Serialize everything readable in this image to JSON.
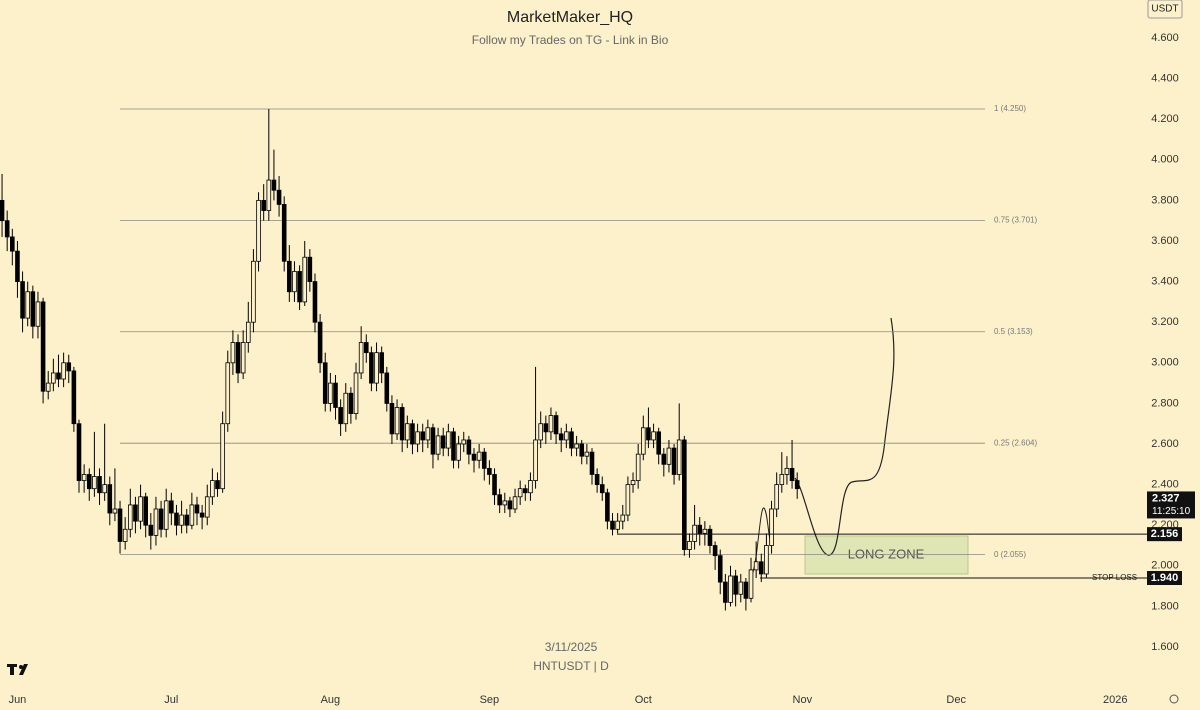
{
  "chart_data": {
    "type": "candlestick",
    "title": "MarketMaker_HQ",
    "subtitle": "Follow my Trades on TG - Link in Bio",
    "currency": "USDT",
    "date": "3/11/2025",
    "symbol": "HNTUSDT | D",
    "zone_label": "LONG ZONE",
    "countdown": "11:25:10",
    "up_color": "#fdf1cc",
    "down_color": "#000000",
    "xlim": [
      -0.4,
      222.8
    ],
    "xticks": [
      {
        "value": 3,
        "label": "Jun"
      },
      {
        "value": 33,
        "label": "Jul"
      },
      {
        "value": 64,
        "label": "Aug"
      },
      {
        "value": 95,
        "label": "Sep"
      },
      {
        "value": 125,
        "label": "Oct"
      },
      {
        "value": 156,
        "label": "Nov"
      },
      {
        "value": 186,
        "label": "Dec"
      },
      {
        "value": 217,
        "label": "2026"
      }
    ],
    "ylim": [
      1.413,
      4.787
    ],
    "yticks": [
      {
        "value": 1.6,
        "label": "1.600"
      },
      {
        "value": 1.8,
        "label": "1.800"
      },
      {
        "value": 2.0,
        "label": "2.000"
      },
      {
        "value": 2.2,
        "label": "2.200"
      },
      {
        "value": 2.4,
        "label": "2.400"
      },
      {
        "value": 2.6,
        "label": "2.600"
      },
      {
        "value": 2.8,
        "label": "2.800"
      },
      {
        "value": 3.0,
        "label": "3.000"
      },
      {
        "value": 3.2,
        "label": "3.200"
      },
      {
        "value": 3.4,
        "label": "3.400"
      },
      {
        "value": 3.6,
        "label": "3.600"
      },
      {
        "value": 3.8,
        "label": "3.800"
      },
      {
        "value": 4.0,
        "label": "4.000"
      },
      {
        "value": 4.2,
        "label": "4.200"
      },
      {
        "value": 4.4,
        "label": "4.400"
      },
      {
        "value": 4.6,
        "label": "4.600"
      }
    ],
    "fib_levels": [
      {
        "value": 4.25,
        "label": "1 (4.250)"
      },
      {
        "value": 3.701,
        "label": "0.75 (3.701)"
      },
      {
        "value": 3.153,
        "label": "0.5 (3.153)"
      },
      {
        "value": 2.604,
        "label": "0.25 (2.604)"
      },
      {
        "value": 2.055,
        "label": "0 (2.055)"
      }
    ],
    "last_price": {
      "value": 2.327,
      "label": "2.327"
    },
    "price_lines": [
      {
        "value": 2.156,
        "label": "2.156"
      },
      {
        "value": 1.94,
        "label": "1.940",
        "name": "STOP LOSS -"
      }
    ],
    "ohlc": [
      [
        3.8,
        3.93,
        3.62,
        3.7
      ],
      [
        3.7,
        3.75,
        3.55,
        3.62
      ],
      [
        3.62,
        3.66,
        3.48,
        3.55
      ],
      [
        3.55,
        3.6,
        3.32,
        3.4
      ],
      [
        3.4,
        3.45,
        3.15,
        3.22
      ],
      [
        3.22,
        3.4,
        3.18,
        3.35
      ],
      [
        3.35,
        3.38,
        3.12,
        3.18
      ],
      [
        3.18,
        3.35,
        3.12,
        3.3
      ],
      [
        3.3,
        3.32,
        2.8,
        2.86
      ],
      [
        2.86,
        2.96,
        2.82,
        2.9
      ],
      [
        2.9,
        3.02,
        2.86,
        2.95
      ],
      [
        2.95,
        3.04,
        2.88,
        2.92
      ],
      [
        2.92,
        3.05,
        2.88,
        3.0
      ],
      [
        3.0,
        3.04,
        2.9,
        2.96
      ],
      [
        2.96,
        2.98,
        2.66,
        2.7
      ],
      [
        2.7,
        2.72,
        2.36,
        2.42
      ],
      [
        2.42,
        2.5,
        2.36,
        2.45
      ],
      [
        2.45,
        2.48,
        2.32,
        2.38
      ],
      [
        2.38,
        2.66,
        2.34,
        2.44
      ],
      [
        2.44,
        2.48,
        2.3,
        2.36
      ],
      [
        2.36,
        2.7,
        2.32,
        2.4
      ],
      [
        2.4,
        2.44,
        2.2,
        2.26
      ],
      [
        2.26,
        2.48,
        2.22,
        2.28
      ],
      [
        2.28,
        2.32,
        2.06,
        2.12
      ],
      [
        2.12,
        2.24,
        2.08,
        2.18
      ],
      [
        2.18,
        2.38,
        2.14,
        2.3
      ],
      [
        2.3,
        2.34,
        2.16,
        2.22
      ],
      [
        2.22,
        2.4,
        2.18,
        2.34
      ],
      [
        2.34,
        2.36,
        2.14,
        2.2
      ],
      [
        2.2,
        2.26,
        2.08,
        2.15
      ],
      [
        2.15,
        2.34,
        2.1,
        2.28
      ],
      [
        2.28,
        2.32,
        2.14,
        2.18
      ],
      [
        2.18,
        2.38,
        2.14,
        2.32
      ],
      [
        2.32,
        2.36,
        2.2,
        2.26
      ],
      [
        2.26,
        2.3,
        2.15,
        2.2
      ],
      [
        2.2,
        2.32,
        2.16,
        2.25
      ],
      [
        2.25,
        2.28,
        2.16,
        2.2
      ],
      [
        2.2,
        2.36,
        2.18,
        2.3
      ],
      [
        2.3,
        2.34,
        2.2,
        2.26
      ],
      [
        2.26,
        2.3,
        2.18,
        2.24
      ],
      [
        2.24,
        2.4,
        2.2,
        2.34
      ],
      [
        2.34,
        2.48,
        2.3,
        2.42
      ],
      [
        2.42,
        2.46,
        2.34,
        2.38
      ],
      [
        2.38,
        2.76,
        2.36,
        2.7
      ],
      [
        2.7,
        3.06,
        2.66,
        3.0
      ],
      [
        3.0,
        3.16,
        2.94,
        3.1
      ],
      [
        3.1,
        3.14,
        2.9,
        2.95
      ],
      [
        2.95,
        3.16,
        2.92,
        3.1
      ],
      [
        3.1,
        3.3,
        3.05,
        3.2
      ],
      [
        3.2,
        3.56,
        3.15,
        3.5
      ],
      [
        3.5,
        3.84,
        3.45,
        3.8
      ],
      [
        3.8,
        3.88,
        3.7,
        3.75
      ],
      [
        3.75,
        4.25,
        3.7,
        3.9
      ],
      [
        3.9,
        4.05,
        3.8,
        3.85
      ],
      [
        3.85,
        3.92,
        3.72,
        3.78
      ],
      [
        3.78,
        3.82,
        3.45,
        3.5
      ],
      [
        3.5,
        3.58,
        3.3,
        3.35
      ],
      [
        3.35,
        3.5,
        3.3,
        3.45
      ],
      [
        3.45,
        3.48,
        3.26,
        3.3
      ],
      [
        3.3,
        3.6,
        3.28,
        3.52
      ],
      [
        3.52,
        3.56,
        3.35,
        3.4
      ],
      [
        3.4,
        3.44,
        3.15,
        3.2
      ],
      [
        3.2,
        3.24,
        2.95,
        3.0
      ],
      [
        3.0,
        3.05,
        2.76,
        2.8
      ],
      [
        2.8,
        2.95,
        2.76,
        2.9
      ],
      [
        2.9,
        2.94,
        2.72,
        2.78
      ],
      [
        2.78,
        2.82,
        2.64,
        2.7
      ],
      [
        2.7,
        2.9,
        2.66,
        2.85
      ],
      [
        2.85,
        2.88,
        2.7,
        2.75
      ],
      [
        2.75,
        3.0,
        2.72,
        2.95
      ],
      [
        2.95,
        3.18,
        2.92,
        3.1
      ],
      [
        3.1,
        3.14,
        3.0,
        3.05
      ],
      [
        3.05,
        3.08,
        2.86,
        2.9
      ],
      [
        2.9,
        3.1,
        2.86,
        3.05
      ],
      [
        3.05,
        3.08,
        2.9,
        2.95
      ],
      [
        2.95,
        2.98,
        2.76,
        2.8
      ],
      [
        2.8,
        2.84,
        2.6,
        2.65
      ],
      [
        2.65,
        2.82,
        2.62,
        2.78
      ],
      [
        2.78,
        2.8,
        2.56,
        2.62
      ],
      [
        2.62,
        2.74,
        2.58,
        2.7
      ],
      [
        2.7,
        2.72,
        2.55,
        2.6
      ],
      [
        2.6,
        2.7,
        2.56,
        2.66
      ],
      [
        2.66,
        2.7,
        2.56,
        2.62
      ],
      [
        2.62,
        2.72,
        2.58,
        2.68
      ],
      [
        2.68,
        2.7,
        2.48,
        2.55
      ],
      [
        2.55,
        2.68,
        2.52,
        2.64
      ],
      [
        2.64,
        2.68,
        2.54,
        2.58
      ],
      [
        2.58,
        2.7,
        2.54,
        2.66
      ],
      [
        2.66,
        2.68,
        2.48,
        2.52
      ],
      [
        2.52,
        2.64,
        2.48,
        2.6
      ],
      [
        2.6,
        2.66,
        2.56,
        2.62
      ],
      [
        2.62,
        2.64,
        2.5,
        2.55
      ],
      [
        2.55,
        2.58,
        2.46,
        2.52
      ],
      [
        2.52,
        2.6,
        2.48,
        2.56
      ],
      [
        2.56,
        2.58,
        2.42,
        2.48
      ],
      [
        2.48,
        2.52,
        2.4,
        2.45
      ],
      [
        2.45,
        2.48,
        2.3,
        2.35
      ],
      [
        2.35,
        2.38,
        2.26,
        2.3
      ],
      [
        2.3,
        2.36,
        2.26,
        2.32
      ],
      [
        2.32,
        2.34,
        2.24,
        2.28
      ],
      [
        2.28,
        2.38,
        2.26,
        2.34
      ],
      [
        2.34,
        2.42,
        2.3,
        2.38
      ],
      [
        2.38,
        2.4,
        2.32,
        2.36
      ],
      [
        2.36,
        2.46,
        2.32,
        2.42
      ],
      [
        2.42,
        2.98,
        2.38,
        2.62
      ],
      [
        2.62,
        2.76,
        2.58,
        2.7
      ],
      [
        2.7,
        2.74,
        2.6,
        2.66
      ],
      [
        2.66,
        2.78,
        2.62,
        2.74
      ],
      [
        2.74,
        2.76,
        2.6,
        2.65
      ],
      [
        2.65,
        2.68,
        2.56,
        2.62
      ],
      [
        2.62,
        2.7,
        2.58,
        2.66
      ],
      [
        2.66,
        2.68,
        2.54,
        2.58
      ],
      [
        2.58,
        2.64,
        2.54,
        2.6
      ],
      [
        2.6,
        2.62,
        2.5,
        2.54
      ],
      [
        2.54,
        2.6,
        2.5,
        2.56
      ],
      [
        2.56,
        2.58,
        2.4,
        2.45
      ],
      [
        2.45,
        2.48,
        2.36,
        2.4
      ],
      [
        2.4,
        2.44,
        2.32,
        2.36
      ],
      [
        2.36,
        2.38,
        2.18,
        2.22
      ],
      [
        2.22,
        2.26,
        2.15,
        2.18
      ],
      [
        2.18,
        2.26,
        2.16,
        2.22
      ],
      [
        2.22,
        2.3,
        2.18,
        2.25
      ],
      [
        2.25,
        2.44,
        2.22,
        2.4
      ],
      [
        2.4,
        2.46,
        2.36,
        2.42
      ],
      [
        2.42,
        2.6,
        2.38,
        2.55
      ],
      [
        2.55,
        2.74,
        2.52,
        2.68
      ],
      [
        2.68,
        2.78,
        2.58,
        2.62
      ],
      [
        2.62,
        2.7,
        2.58,
        2.66
      ],
      [
        2.66,
        2.68,
        2.5,
        2.55
      ],
      [
        2.55,
        2.58,
        2.44,
        2.5
      ],
      [
        2.5,
        2.62,
        2.46,
        2.58
      ],
      [
        2.58,
        2.6,
        2.4,
        2.45
      ],
      [
        2.45,
        2.8,
        2.42,
        2.62
      ],
      [
        2.62,
        2.64,
        2.05,
        2.08
      ],
      [
        2.08,
        2.16,
        2.04,
        2.12
      ],
      [
        2.12,
        2.3,
        2.08,
        2.2
      ],
      [
        2.2,
        2.24,
        2.1,
        2.16
      ],
      [
        2.16,
        2.22,
        2.1,
        2.18
      ],
      [
        2.18,
        2.2,
        2.06,
        2.1
      ],
      [
        2.1,
        2.12,
        1.98,
        2.05
      ],
      [
        2.05,
        2.08,
        1.86,
        1.92
      ],
      [
        1.92,
        1.96,
        1.78,
        1.82
      ],
      [
        1.82,
        2.0,
        1.8,
        1.95
      ],
      [
        1.95,
        1.98,
        1.8,
        1.86
      ],
      [
        1.86,
        1.96,
        1.82,
        1.92
      ],
      [
        1.92,
        1.94,
        1.78,
        1.84
      ],
      [
        1.84,
        2.04,
        1.82,
        1.98
      ],
      [
        1.98,
        2.12,
        1.94,
        2.02
      ],
      [
        2.02,
        2.06,
        1.92,
        1.96
      ],
      [
        1.96,
        2.16,
        1.94,
        2.1
      ],
      [
        2.1,
        2.32,
        2.06,
        2.28
      ],
      [
        2.28,
        2.46,
        2.24,
        2.4
      ],
      [
        2.4,
        2.56,
        2.36,
        2.45
      ],
      [
        2.45,
        2.54,
        2.4,
        2.48
      ],
      [
        2.48,
        2.62,
        2.38,
        2.42
      ],
      [
        2.42,
        2.46,
        2.33,
        2.38
      ]
    ]
  }
}
